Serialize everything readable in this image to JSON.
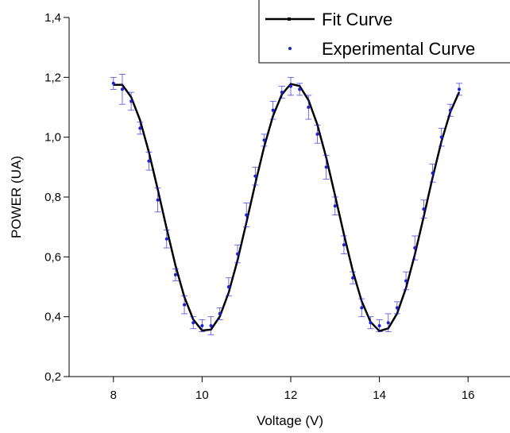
{
  "chart_data": {
    "type": "scatter",
    "x_label": "Voltage (V)",
    "y_label": "POWER (UA)",
    "xlim": [
      7,
      17
    ],
    "xticks": [
      8,
      10,
      12,
      14,
      16
    ],
    "ylim": [
      0.2,
      1.4
    ],
    "yticks": [
      {
        "value": 0.2,
        "label": "0,2"
      },
      {
        "value": 0.4,
        "label": "0,4"
      },
      {
        "value": 0.6,
        "label": "0,6"
      },
      {
        "value": 0.8,
        "label": "0,8"
      },
      {
        "value": 1.0,
        "label": "1,0"
      },
      {
        "value": 1.2,
        "label": "1,2"
      },
      {
        "value": 1.4,
        "label": "1,4"
      }
    ],
    "legend": "top-right",
    "series": [
      {
        "name": "Fit Curve",
        "color": "#000000",
        "kind": "line",
        "x": [
          8.0,
          8.2,
          8.4,
          8.6,
          8.8,
          9.0,
          9.2,
          9.4,
          9.6,
          9.8,
          10.0,
          10.2,
          10.4,
          10.6,
          10.8,
          11.0,
          11.2,
          11.4,
          11.6,
          11.8,
          12.0,
          12.2,
          12.4,
          12.6,
          12.8,
          13.0,
          13.2,
          13.4,
          13.6,
          13.8,
          14.0,
          14.2,
          14.4,
          14.6,
          14.8,
          15.0,
          15.2,
          15.4,
          15.6,
          15.8
        ],
        "values": [
          1.175,
          1.175,
          1.134,
          1.057,
          0.95,
          0.825,
          0.695,
          0.571,
          0.466,
          0.391,
          0.354,
          0.357,
          0.401,
          0.481,
          0.589,
          0.715,
          0.845,
          0.968,
          1.071,
          1.143,
          1.178,
          1.171,
          1.124,
          1.042,
          0.932,
          0.805,
          0.675,
          0.553,
          0.452,
          0.383,
          0.352,
          0.361,
          0.411,
          0.496,
          0.608,
          0.735,
          0.865,
          0.986,
          1.084,
          1.151
        ]
      },
      {
        "name": "Experimental Curve",
        "color": "#1f1fd6",
        "kind": "points",
        "x": [
          8.0,
          8.2,
          8.4,
          8.6,
          8.8,
          9.0,
          9.2,
          9.4,
          9.6,
          9.8,
          10.0,
          10.2,
          10.4,
          10.6,
          10.8,
          11.0,
          11.2,
          11.4,
          11.6,
          11.8,
          12.0,
          12.2,
          12.4,
          12.6,
          12.8,
          13.0,
          13.2,
          13.4,
          13.6,
          13.8,
          14.0,
          14.2,
          14.4,
          14.6,
          14.8,
          15.0,
          15.2,
          15.4,
          15.6,
          15.8
        ],
        "values": [
          1.18,
          1.16,
          1.12,
          1.03,
          0.92,
          0.79,
          0.66,
          0.54,
          0.44,
          0.38,
          0.37,
          0.37,
          0.41,
          0.5,
          0.61,
          0.74,
          0.87,
          0.99,
          1.09,
          1.15,
          1.17,
          1.16,
          1.1,
          1.01,
          0.9,
          0.77,
          0.64,
          0.53,
          0.43,
          0.38,
          0.37,
          0.38,
          0.43,
          0.52,
          0.63,
          0.76,
          0.88,
          1.0,
          1.09,
          1.16
        ],
        "errors": [
          0.02,
          0.05,
          0.03,
          0.02,
          0.03,
          0.04,
          0.03,
          0.02,
          0.03,
          0.02,
          0.02,
          0.03,
          0.02,
          0.03,
          0.03,
          0.04,
          0.03,
          0.02,
          0.03,
          0.02,
          0.03,
          0.02,
          0.04,
          0.03,
          0.04,
          0.03,
          0.03,
          0.02,
          0.03,
          0.02,
          0.02,
          0.03,
          0.02,
          0.03,
          0.04,
          0.03,
          0.03,
          0.03,
          0.02,
          0.02
        ]
      }
    ]
  }
}
